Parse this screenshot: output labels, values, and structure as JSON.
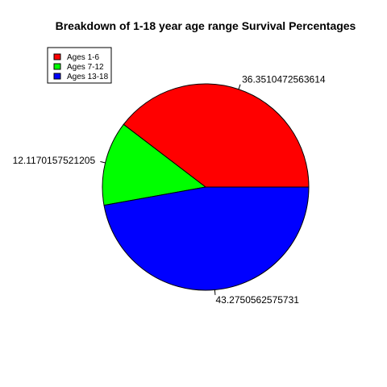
{
  "chart_data": {
    "type": "pie",
    "title": "Breakdown of 1-18 year age range Survival Percentages",
    "slices": [
      {
        "label": "36.3510472563614",
        "value": 36.3510472563614,
        "legend": "Ages 1-6",
        "color": "#ff0000"
      },
      {
        "label": "12.1170157521205",
        "value": 12.1170157521205,
        "legend": "Ages 7-12",
        "color": "#00ff00"
      },
      {
        "label": "43.2750562575731",
        "value": 43.2750562575731,
        "legend": "Ages 13-18",
        "color": "#0000ff"
      }
    ],
    "start_angle_deg": 0,
    "direction": "counterclockwise",
    "legend_position": "top-left",
    "grid": false
  }
}
